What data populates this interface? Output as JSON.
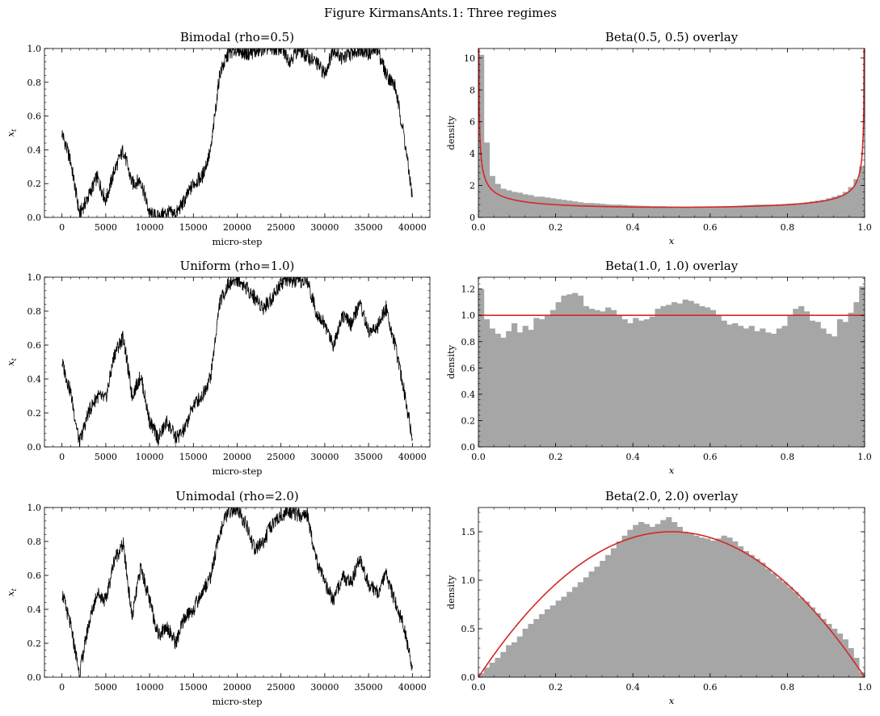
{
  "figure": {
    "suptitle": "Figure KirmansAnts.1: Three regimes",
    "colors": {
      "trace": "#000000",
      "hist": "#a6a6a6",
      "curve": "#d62728"
    }
  },
  "chart_data": [
    {
      "type": "line",
      "title": "Bimodal (rho=0.5)",
      "xlabel": "micro-step",
      "ylabel": "x_t",
      "xlim": [
        -2000,
        42000
      ],
      "ylim": [
        0,
        1
      ],
      "xticks": [
        0,
        5000,
        10000,
        15000,
        20000,
        25000,
        30000,
        35000,
        40000
      ],
      "yticks": [
        0.0,
        0.2,
        0.4,
        0.6,
        0.8,
        1.0
      ],
      "x": [
        0,
        1000,
        2000,
        3000,
        4000,
        5000,
        6000,
        7000,
        8000,
        9000,
        10000,
        11000,
        12000,
        13000,
        14000,
        15000,
        16000,
        17000,
        18000,
        19000,
        20000,
        21000,
        22000,
        23000,
        24000,
        25000,
        26000,
        27000,
        28000,
        29000,
        30000,
        31000,
        32000,
        33000,
        34000,
        35000,
        36000,
        37000,
        38000,
        39000,
        40000
      ],
      "values": [
        0.5,
        0.33,
        0.02,
        0.12,
        0.24,
        0.1,
        0.28,
        0.4,
        0.2,
        0.22,
        0.02,
        0.0,
        0.03,
        0.02,
        0.1,
        0.2,
        0.24,
        0.4,
        0.85,
        0.97,
        1.0,
        0.97,
        0.98,
        1.0,
        1.0,
        1.0,
        0.93,
        1.0,
        0.95,
        0.92,
        0.85,
        1.0,
        0.94,
        0.97,
        1.0,
        0.97,
        1.0,
        0.85,
        0.78,
        0.5,
        0.12
      ]
    },
    {
      "type": "bar",
      "title": "Beta(0.5, 0.5) overlay",
      "xlabel": "x",
      "ylabel": "density",
      "xlim": [
        0,
        1
      ],
      "ylim": [
        0,
        10.6
      ],
      "xticks": [
        0.0,
        0.2,
        0.4,
        0.6,
        0.8,
        1.0
      ],
      "yticks": [
        0,
        2,
        4,
        6,
        8,
        10
      ],
      "bin_count": 70,
      "series": [
        {
          "type": "histogram",
          "values": [
            10.2,
            4.7,
            2.6,
            2.1,
            1.8,
            1.7,
            1.6,
            1.55,
            1.45,
            1.4,
            1.3,
            1.3,
            1.25,
            1.2,
            1.15,
            1.1,
            1.05,
            1.0,
            0.95,
            0.9,
            0.9,
            0.88,
            0.85,
            0.82,
            0.8,
            0.8,
            0.78,
            0.75,
            0.74,
            0.73,
            0.72,
            0.7,
            0.7,
            0.7,
            0.68,
            0.68,
            0.66,
            0.66,
            0.66,
            0.64,
            0.64,
            0.64,
            0.66,
            0.68,
            0.7,
            0.7,
            0.72,
            0.74,
            0.76,
            0.78,
            0.8,
            0.8,
            0.8,
            0.8,
            0.82,
            0.84,
            0.86,
            0.88,
            0.9,
            0.95,
            1.0,
            1.05,
            1.1,
            1.2,
            1.3,
            1.4,
            1.6,
            1.9,
            2.4,
            3.2
          ]
        },
        {
          "type": "pdf",
          "alpha": 0.5,
          "beta": 0.5
        }
      ]
    },
    {
      "type": "line",
      "title": "Uniform (rho=1.0)",
      "xlabel": "micro-step",
      "ylabel": "x_t",
      "xlim": [
        -2000,
        42000
      ],
      "ylim": [
        0,
        1
      ],
      "xticks": [
        0,
        5000,
        10000,
        15000,
        20000,
        25000,
        30000,
        35000,
        40000
      ],
      "yticks": [
        0.0,
        0.2,
        0.4,
        0.6,
        0.8,
        1.0
      ],
      "x": [
        0,
        1000,
        2000,
        3000,
        4000,
        5000,
        6000,
        7000,
        8000,
        9000,
        10000,
        11000,
        12000,
        13000,
        14000,
        15000,
        16000,
        17000,
        18000,
        19000,
        20000,
        21000,
        22000,
        23000,
        24000,
        25000,
        26000,
        27000,
        28000,
        29000,
        30000,
        31000,
        32000,
        33000,
        34000,
        35000,
        36000,
        37000,
        38000,
        39000,
        40000
      ],
      "values": [
        0.5,
        0.32,
        0.02,
        0.2,
        0.3,
        0.28,
        0.55,
        0.65,
        0.3,
        0.42,
        0.15,
        0.05,
        0.15,
        0.05,
        0.1,
        0.25,
        0.3,
        0.42,
        0.85,
        0.96,
        0.99,
        0.94,
        0.88,
        0.82,
        0.88,
        0.97,
        0.98,
        0.97,
        0.98,
        0.8,
        0.72,
        0.6,
        0.78,
        0.72,
        0.85,
        0.68,
        0.7,
        0.82,
        0.6,
        0.35,
        0.05
      ]
    },
    {
      "type": "bar",
      "title": "Beta(1.0, 1.0) overlay",
      "xlabel": "x",
      "ylabel": "density",
      "xlim": [
        0,
        1
      ],
      "ylim": [
        0,
        1.29
      ],
      "xticks": [
        0.0,
        0.2,
        0.4,
        0.6,
        0.8,
        1.0
      ],
      "yticks": [
        0.0,
        0.2,
        0.4,
        0.6,
        0.8,
        1.0,
        1.2
      ],
      "bin_count": 70,
      "series": [
        {
          "type": "histogram",
          "values": [
            1.2,
            0.97,
            0.9,
            0.86,
            0.83,
            0.88,
            0.94,
            0.87,
            0.92,
            0.89,
            0.98,
            0.97,
            1.0,
            1.04,
            1.1,
            1.15,
            1.16,
            1.17,
            1.15,
            1.07,
            1.05,
            1.04,
            1.03,
            1.06,
            1.04,
            1.0,
            0.97,
            0.94,
            0.98,
            0.96,
            0.97,
            0.99,
            1.05,
            1.07,
            1.08,
            1.1,
            1.09,
            1.12,
            1.11,
            1.09,
            1.07,
            1.06,
            1.04,
            1.0,
            0.96,
            0.93,
            0.94,
            0.92,
            0.9,
            0.92,
            0.88,
            0.9,
            0.87,
            0.86,
            0.9,
            0.92,
            1.0,
            1.05,
            1.07,
            1.03,
            0.96,
            0.95,
            0.9,
            0.86,
            0.84,
            0.97,
            0.95,
            1.02,
            1.1,
            1.22
          ]
        },
        {
          "type": "pdf",
          "alpha": 1.0,
          "beta": 1.0
        }
      ]
    },
    {
      "type": "line",
      "title": "Unimodal (rho=2.0)",
      "xlabel": "micro-step",
      "ylabel": "x_t",
      "xlim": [
        -2000,
        42000
      ],
      "ylim": [
        0,
        1
      ],
      "xticks": [
        0,
        5000,
        10000,
        15000,
        20000,
        25000,
        30000,
        35000,
        40000
      ],
      "yticks": [
        0.0,
        0.2,
        0.4,
        0.6,
        0.8,
        1.0
      ],
      "x": [
        0,
        1000,
        2000,
        3000,
        4000,
        5000,
        6000,
        7000,
        8000,
        9000,
        10000,
        11000,
        12000,
        13000,
        14000,
        15000,
        16000,
        17000,
        18000,
        19000,
        20000,
        21000,
        22000,
        23000,
        24000,
        25000,
        26000,
        27000,
        28000,
        29000,
        30000,
        31000,
        32000,
        33000,
        34000,
        35000,
        36000,
        37000,
        38000,
        39000,
        40000
      ],
      "values": [
        0.5,
        0.3,
        0.02,
        0.3,
        0.5,
        0.45,
        0.7,
        0.78,
        0.35,
        0.65,
        0.45,
        0.25,
        0.3,
        0.2,
        0.35,
        0.4,
        0.5,
        0.6,
        0.85,
        0.98,
        0.99,
        0.9,
        0.75,
        0.8,
        0.9,
        0.95,
        0.98,
        0.95,
        0.96,
        0.7,
        0.55,
        0.45,
        0.6,
        0.55,
        0.7,
        0.55,
        0.5,
        0.6,
        0.45,
        0.3,
        0.05
      ]
    },
    {
      "type": "bar",
      "title": "Beta(2.0, 2.0) overlay",
      "xlabel": "x",
      "ylabel": "density",
      "xlim": [
        0,
        1
      ],
      "ylim": [
        0,
        1.75
      ],
      "xticks": [
        0.0,
        0.2,
        0.4,
        0.6,
        0.8,
        1.0
      ],
      "yticks": [
        0.0,
        0.5,
        1.0,
        1.5
      ],
      "bin_count": 70,
      "series": [
        {
          "type": "histogram",
          "values": [
            0.04,
            0.1,
            0.15,
            0.2,
            0.26,
            0.33,
            0.36,
            0.42,
            0.5,
            0.55,
            0.6,
            0.65,
            0.7,
            0.74,
            0.79,
            0.83,
            0.88,
            0.93,
            0.98,
            1.03,
            1.09,
            1.14,
            1.2,
            1.26,
            1.33,
            1.4,
            1.46,
            1.52,
            1.57,
            1.6,
            1.58,
            1.55,
            1.58,
            1.62,
            1.65,
            1.6,
            1.55,
            1.5,
            1.48,
            1.46,
            1.44,
            1.43,
            1.41,
            1.43,
            1.46,
            1.44,
            1.4,
            1.35,
            1.3,
            1.26,
            1.22,
            1.18,
            1.12,
            1.07,
            1.02,
            0.98,
            0.93,
            0.88,
            0.82,
            0.78,
            0.72,
            0.66,
            0.6,
            0.55,
            0.5,
            0.45,
            0.39,
            0.3,
            0.2,
            0.05
          ]
        },
        {
          "type": "pdf",
          "alpha": 2.0,
          "beta": 2.0
        }
      ]
    }
  ]
}
